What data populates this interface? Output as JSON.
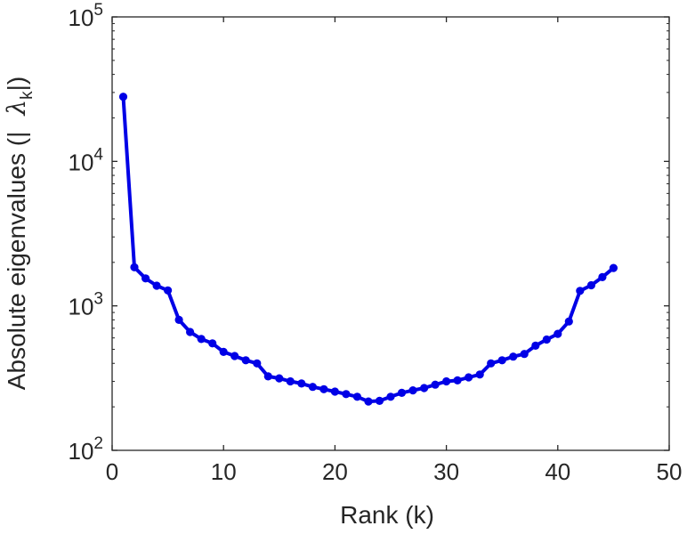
{
  "chart_data": {
    "type": "line",
    "title": "",
    "xlabel": "Rank (k)",
    "ylabel": {
      "prefix": "Absolute eigenvalues (|",
      "symbol": "λ",
      "subscript": "k",
      "suffix": "|)"
    },
    "xlim": [
      0,
      50
    ],
    "ylim": [
      100,
      100000
    ],
    "yscale": "log",
    "grid": false,
    "legend": "none",
    "x_ticks": [
      {
        "value": 0,
        "label": "0"
      },
      {
        "value": 10,
        "label": "10"
      },
      {
        "value": 20,
        "label": "20"
      },
      {
        "value": 30,
        "label": "30"
      },
      {
        "value": 40,
        "label": "40"
      },
      {
        "value": 50,
        "label": "50"
      }
    ],
    "y_ticks": [
      {
        "value": 100,
        "base": "10",
        "exp": "2"
      },
      {
        "value": 1000,
        "base": "10",
        "exp": "3"
      },
      {
        "value": 10000,
        "base": "10",
        "exp": "4"
      },
      {
        "value": 100000,
        "base": "10",
        "exp": "5"
      }
    ],
    "color": "#0000e6",
    "series": [
      {
        "x": [
          1,
          2,
          3,
          4,
          5,
          6,
          7,
          8,
          9,
          10,
          11,
          12,
          13,
          14,
          15,
          16,
          17,
          18,
          19,
          20,
          21,
          22,
          23,
          24,
          25,
          26,
          27,
          28,
          29,
          30,
          31,
          32,
          33,
          34,
          35,
          36,
          37,
          38,
          39,
          40,
          41,
          42,
          43,
          44,
          45
        ],
        "values": [
          28000,
          1850,
          1550,
          1380,
          1280,
          800,
          660,
          590,
          550,
          480,
          450,
          420,
          400,
          325,
          315,
          300,
          290,
          275,
          265,
          255,
          245,
          235,
          218,
          220,
          235,
          250,
          260,
          270,
          285,
          300,
          305,
          320,
          335,
          400,
          420,
          445,
          465,
          530,
          585,
          640,
          780,
          1270,
          1390,
          1580,
          1830
        ]
      }
    ]
  }
}
